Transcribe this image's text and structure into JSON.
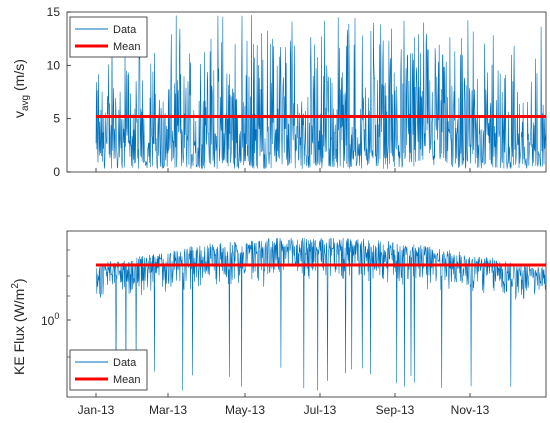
{
  "chart_data": [
    {
      "type": "line",
      "ylabel_main": "v",
      "ylabel_sub": "avg",
      "ylabel_unit": " (m/s)",
      "ylim": [
        0,
        15
      ],
      "y_ticks": [
        0,
        5,
        10,
        15
      ],
      "y_tick_labels": [
        "0",
        "5",
        "10",
        "15"
      ],
      "grid": false,
      "legend_position": "top-left",
      "series": [
        {
          "name": "Data",
          "color": "#0072BD",
          "style": "noisy time series, daily-or-finer samples Jan-13 to Dec-13, ranging 0 to ~14.8",
          "approx_envelope": {
            "min": 0.2,
            "max": 14.8
          }
        },
        {
          "name": "Mean",
          "color": "#FF0000",
          "x": [
            "Jan-13",
            "Dec-13"
          ],
          "y": [
            5.2,
            5.2
          ]
        }
      ]
    },
    {
      "type": "line",
      "ylabel_main": "KE Flux (W/m",
      "ylabel_sup": "2",
      "ylabel_close": ")",
      "yscale": "log",
      "y_tick_labels": [
        "10"
      ],
      "y_tick_exponent": "0",
      "grid": false,
      "legend_position": "bottom-left",
      "series": [
        {
          "name": "Data",
          "color": "#0072BD",
          "style": "noisy time series on log scale, Jan-13 to Dec-13"
        },
        {
          "name": "Mean",
          "color": "#FF0000",
          "x": [
            "Jan-13",
            "Dec-13"
          ]
        }
      ]
    }
  ],
  "x_axis": {
    "tick_labels": [
      "Jan-13",
      "Mar-13",
      "May-13",
      "Jul-13",
      "Sep-13",
      "Nov-13"
    ]
  },
  "legend": {
    "data_label": "Data",
    "mean_label": "Mean"
  },
  "colors": {
    "data": "#0072BD",
    "mean": "#FF0000",
    "axis": "#262626"
  }
}
